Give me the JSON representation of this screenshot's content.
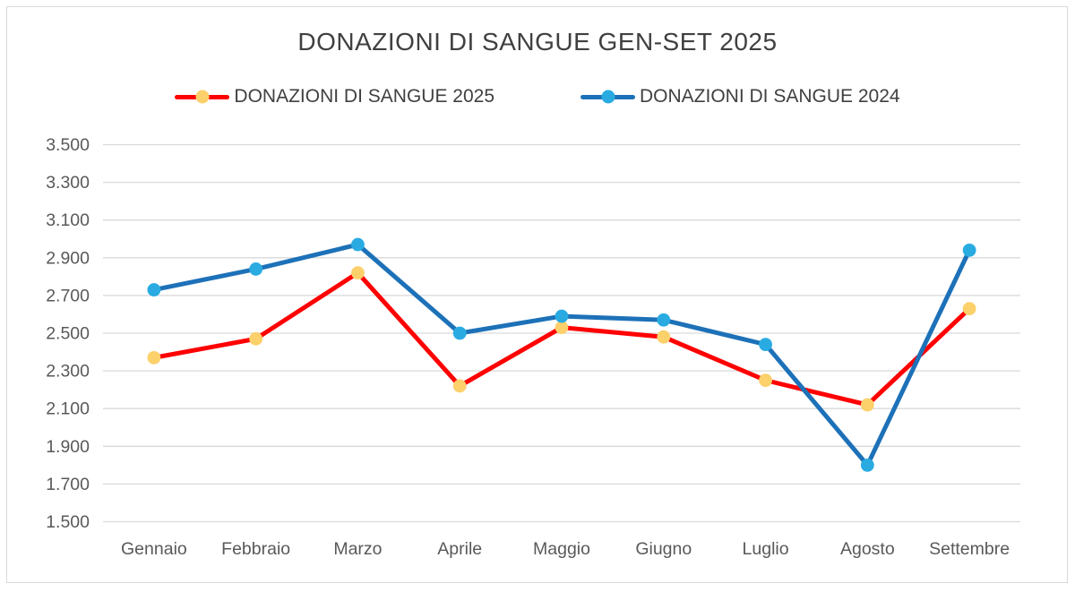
{
  "chart_data": {
    "type": "line",
    "title": "DONAZIONI DI SANGUE GEN-SET 2025",
    "xlabel": "",
    "ylabel": "",
    "categories": [
      "Gennaio",
      "Febbraio",
      "Marzo",
      "Aprile",
      "Maggio",
      "Giugno",
      "Luglio",
      "Agosto",
      "Settembre"
    ],
    "series": [
      {
        "name": "DONAZIONI DI SANGUE 2025",
        "values": [
          2370,
          2470,
          2820,
          2220,
          2530,
          2480,
          2250,
          2120,
          2630
        ],
        "line_color": "#FF0000",
        "marker_color": "#FCD06B"
      },
      {
        "name": "DONAZIONI DI SANGUE 2024",
        "values": [
          2730,
          2840,
          2970,
          2500,
          2590,
          2570,
          2440,
          1800,
          2940
        ],
        "line_color": "#1D71B8",
        "marker_color": "#29ABE2"
      }
    ],
    "ylim": [
      1500,
      3500
    ],
    "ytick_step": 200,
    "ytick_labels": [
      "1.500",
      "1.700",
      "1.900",
      "2.100",
      "2.300",
      "2.500",
      "2.700",
      "2.900",
      "3.100",
      "3.300",
      "3.500"
    ],
    "grid": true,
    "legend_position": "top",
    "colors": {
      "grid": "#D9D9D9",
      "frame_border": "#D9D9D9",
      "title_text": "#404040",
      "legend_text": "#404040",
      "axis_text": "#595959",
      "background": "#FFFFFF"
    }
  }
}
